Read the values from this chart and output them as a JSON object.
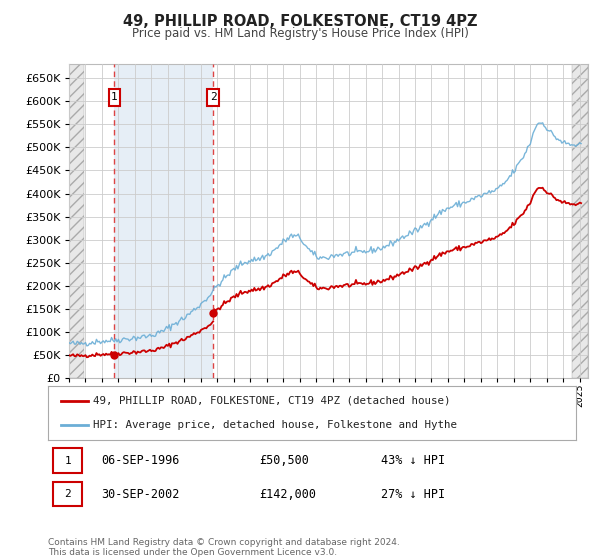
{
  "title": "49, PHILLIP ROAD, FOLKESTONE, CT19 4PZ",
  "subtitle": "Price paid vs. HM Land Registry's House Price Index (HPI)",
  "hpi_label": "HPI: Average price, detached house, Folkestone and Hythe",
  "price_label": "49, PHILLIP ROAD, FOLKESTONE, CT19 4PZ (detached house)",
  "transaction1": {
    "date": "06-SEP-1996",
    "price": 50500,
    "year": 1996.75,
    "pct": "43%",
    "dir": "↓"
  },
  "transaction2": {
    "date": "30-SEP-2002",
    "price": 142000,
    "year": 2002.75,
    "pct": "27%",
    "dir": "↓"
  },
  "footer": "Contains HM Land Registry data © Crown copyright and database right 2024.\nThis data is licensed under the Open Government Licence v3.0.",
  "ylim": [
    0,
    680000
  ],
  "yticks": [
    0,
    50000,
    100000,
    150000,
    200000,
    250000,
    300000,
    350000,
    400000,
    450000,
    500000,
    550000,
    600000,
    650000
  ],
  "xlim_start": 1994.0,
  "xlim_end": 2025.5,
  "hpi_color": "#6baed6",
  "price_color": "#cc0000",
  "shade_color": "#d6e4f0",
  "dashed_color": "#e06060",
  "bg_color": "#ffffff",
  "grid_color": "#cccccc",
  "hatch_bg": "#f0f0f0"
}
